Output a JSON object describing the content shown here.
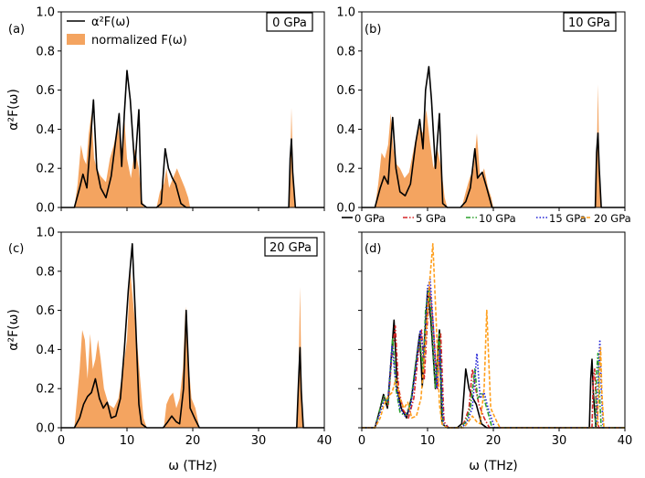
{
  "figure": {
    "xlabel": "ω (THz)",
    "ylabel": "α²F(ω)",
    "legend_line": "α²F(ω)",
    "legend_fill": "normalized F(ω)"
  },
  "colors": {
    "alpha": "#000000",
    "fill": "#f4a460",
    "s0": "#000000",
    "s5": "#d62728",
    "s10": "#2ca02c",
    "s15": "#1f1fd6",
    "s20": "#ff9f1c"
  },
  "chart_data": [
    {
      "type": "area",
      "panel": "(a)",
      "pressure_label": "0 GPa",
      "xlim": [
        0,
        40
      ],
      "ylim": [
        0,
        1.0
      ],
      "xticks": [
        "0",
        "10",
        "20",
        "30",
        "40"
      ],
      "yticks": [
        "0.0",
        "0.2",
        "0.4",
        "0.6",
        "0.8",
        "1.0"
      ],
      "series": [
        {
          "name": "α²F(ω)",
          "x": [
            0.0,
            2.0,
            2.8,
            3.3,
            3.9,
            4.4,
            4.9,
            5.4,
            6.0,
            6.8,
            7.6,
            8.3,
            8.8,
            9.2,
            9.6,
            10.0,
            10.5,
            11.2,
            11.8,
            12.2,
            13.0,
            14.5,
            15.2,
            15.8,
            16.3,
            16.9,
            17.4,
            18.2,
            19.0,
            34.6,
            34.8,
            35.0,
            35.2,
            35.6,
            40.0
          ],
          "y": [
            0.0,
            0.0,
            0.1,
            0.17,
            0.1,
            0.32,
            0.55,
            0.2,
            0.1,
            0.05,
            0.16,
            0.35,
            0.48,
            0.21,
            0.48,
            0.7,
            0.55,
            0.2,
            0.5,
            0.02,
            0.0,
            0.0,
            0.02,
            0.3,
            0.2,
            0.15,
            0.12,
            0.02,
            0.0,
            0.0,
            0.25,
            0.35,
            0.18,
            0.0,
            0.0
          ]
        },
        {
          "name": "normalized F(ω)",
          "x": [
            0.0,
            2.0,
            2.5,
            3.0,
            3.4,
            3.8,
            4.2,
            4.6,
            5.0,
            5.4,
            6.0,
            6.8,
            7.4,
            8.0,
            8.6,
            9.2,
            9.6,
            10.0,
            10.6,
            11.2,
            11.8,
            12.2,
            12.6,
            14.5,
            15.0,
            15.6,
            16.0,
            16.4,
            17.0,
            17.6,
            18.2,
            18.8,
            19.3,
            19.6,
            34.6,
            34.8,
            35.0,
            35.2,
            35.5,
            40.0
          ],
          "y": [
            0.0,
            0.0,
            0.12,
            0.32,
            0.25,
            0.22,
            0.38,
            0.48,
            0.25,
            0.2,
            0.16,
            0.13,
            0.25,
            0.32,
            0.42,
            0.3,
            0.46,
            0.25,
            0.15,
            0.3,
            0.2,
            0.05,
            0.0,
            0.0,
            0.08,
            0.12,
            0.2,
            0.1,
            0.15,
            0.2,
            0.15,
            0.1,
            0.05,
            0.0,
            0.0,
            0.2,
            0.51,
            0.25,
            0.0,
            0.0
          ]
        }
      ]
    },
    {
      "type": "area",
      "panel": "(b)",
      "pressure_label": "10 GPa",
      "xlim": [
        0,
        40
      ],
      "ylim": [
        0,
        1.0
      ],
      "xticks": [
        "0",
        "10",
        "20",
        "30",
        "40"
      ],
      "yticks": [
        "0.0",
        "0.2",
        "0.4",
        "0.6",
        "0.8",
        "1.0"
      ],
      "series": [
        {
          "name": "α²F(ω)",
          "x": [
            0.0,
            2.0,
            2.8,
            3.4,
            4.0,
            4.7,
            5.2,
            5.8,
            6.6,
            7.4,
            8.2,
            8.8,
            9.3,
            9.7,
            10.2,
            10.6,
            11.2,
            11.8,
            12.3,
            13.0,
            15.0,
            15.8,
            16.5,
            17.2,
            17.6,
            18.3,
            19.0,
            19.8,
            35.5,
            35.7,
            35.9,
            36.1,
            36.4,
            40.0
          ],
          "y": [
            0.0,
            0.0,
            0.1,
            0.16,
            0.12,
            0.46,
            0.2,
            0.08,
            0.06,
            0.12,
            0.33,
            0.45,
            0.3,
            0.6,
            0.72,
            0.55,
            0.2,
            0.48,
            0.02,
            0.0,
            0.0,
            0.03,
            0.1,
            0.3,
            0.15,
            0.18,
            0.1,
            0.0,
            0.0,
            0.28,
            0.38,
            0.2,
            0.0,
            0.0
          ]
        },
        {
          "name": "normalized F(ω)",
          "x": [
            0.0,
            2.0,
            2.5,
            3.0,
            3.5,
            4.0,
            4.4,
            4.8,
            5.3,
            5.8,
            6.5,
            7.2,
            7.9,
            8.6,
            9.3,
            9.8,
            10.3,
            10.9,
            11.5,
            12.1,
            12.6,
            13.0,
            15.2,
            15.8,
            16.4,
            17.0,
            17.5,
            18.0,
            18.6,
            19.2,
            19.7,
            20.0,
            35.5,
            35.7,
            35.9,
            36.1,
            36.4,
            40.0
          ],
          "y": [
            0.0,
            0.0,
            0.12,
            0.28,
            0.25,
            0.32,
            0.48,
            0.3,
            0.22,
            0.2,
            0.15,
            0.18,
            0.3,
            0.42,
            0.38,
            0.5,
            0.35,
            0.2,
            0.3,
            0.2,
            0.05,
            0.0,
            0.0,
            0.08,
            0.15,
            0.2,
            0.38,
            0.15,
            0.2,
            0.1,
            0.05,
            0.0,
            0.0,
            0.2,
            0.63,
            0.25,
            0.0,
            0.0
          ]
        }
      ]
    },
    {
      "type": "area",
      "panel": "(c)",
      "pressure_label": "20 GPa",
      "xlim": [
        0,
        40
      ],
      "ylim": [
        0,
        1.0
      ],
      "xticks": [
        "0",
        "10",
        "20",
        "30",
        "40"
      ],
      "yticks": [
        "0.0",
        "0.2",
        "0.4",
        "0.6",
        "0.8",
        "1.0"
      ],
      "series": [
        {
          "name": "α²F(ω)",
          "x": [
            0.0,
            2.0,
            2.8,
            3.4,
            4.0,
            4.6,
            5.2,
            5.8,
            6.4,
            7.0,
            7.6,
            8.3,
            9.0,
            9.6,
            10.2,
            10.8,
            11.3,
            11.8,
            12.2,
            13.0,
            15.5,
            16.2,
            16.8,
            17.5,
            18.0,
            18.6,
            19.0,
            19.6,
            20.4,
            21.0,
            35.8,
            36.1,
            36.3,
            36.5,
            36.8,
            40.0
          ],
          "y": [
            0.0,
            0.0,
            0.05,
            0.12,
            0.16,
            0.18,
            0.25,
            0.15,
            0.1,
            0.13,
            0.05,
            0.06,
            0.15,
            0.4,
            0.7,
            0.94,
            0.55,
            0.12,
            0.02,
            0.0,
            0.0,
            0.03,
            0.06,
            0.03,
            0.02,
            0.2,
            0.6,
            0.1,
            0.04,
            0.0,
            0.0,
            0.25,
            0.41,
            0.18,
            0.0,
            0.0
          ]
        },
        {
          "name": "normalized F(ω)",
          "x": [
            0.0,
            2.0,
            2.4,
            2.8,
            3.2,
            3.6,
            4.0,
            4.4,
            4.8,
            5.2,
            5.6,
            6.0,
            6.5,
            7.2,
            8.0,
            8.7,
            9.4,
            10.0,
            10.5,
            11.0,
            11.5,
            12.0,
            12.5,
            13.0,
            15.6,
            16.0,
            16.5,
            17.0,
            17.5,
            18.0,
            18.5,
            18.9,
            19.3,
            19.8,
            20.4,
            21.0,
            35.8,
            36.1,
            36.3,
            36.5,
            36.8,
            40.0
          ],
          "y": [
            0.0,
            0.0,
            0.15,
            0.3,
            0.5,
            0.45,
            0.25,
            0.48,
            0.3,
            0.35,
            0.45,
            0.35,
            0.2,
            0.12,
            0.1,
            0.15,
            0.3,
            0.45,
            0.8,
            0.62,
            0.45,
            0.25,
            0.05,
            0.0,
            0.0,
            0.12,
            0.16,
            0.18,
            0.1,
            0.15,
            0.3,
            0.62,
            0.35,
            0.15,
            0.1,
            0.0,
            0.0,
            0.3,
            0.72,
            0.3,
            0.0,
            0.0
          ]
        }
      ]
    },
    {
      "type": "line",
      "panel": "(d)",
      "xlim": [
        0,
        40
      ],
      "ylim": [
        0,
        1.0
      ],
      "xticks": [
        "0",
        "10",
        "20",
        "30",
        "40"
      ],
      "yticks": [],
      "legend": [
        "0 GPa",
        "5 GPa",
        "10 GPa",
        "15 GPa",
        "20 GPa"
      ],
      "series": [
        {
          "name": "0 GPa",
          "dash": "solid",
          "x": [
            0.0,
            2.0,
            2.8,
            3.3,
            3.9,
            4.4,
            4.9,
            5.4,
            6.0,
            6.8,
            7.6,
            8.3,
            8.8,
            9.2,
            9.6,
            10.0,
            10.5,
            11.2,
            11.8,
            12.2,
            13.0,
            14.5,
            15.2,
            15.8,
            16.3,
            16.9,
            17.4,
            18.2,
            19.0,
            34.6,
            34.8,
            35.0,
            35.2,
            35.6,
            40.0
          ],
          "y": [
            0.0,
            0.0,
            0.1,
            0.17,
            0.1,
            0.32,
            0.55,
            0.2,
            0.1,
            0.05,
            0.16,
            0.35,
            0.48,
            0.21,
            0.48,
            0.7,
            0.55,
            0.2,
            0.5,
            0.02,
            0.0,
            0.0,
            0.02,
            0.3,
            0.2,
            0.15,
            0.12,
            0.02,
            0.0,
            0.0,
            0.25,
            0.35,
            0.18,
            0.0,
            0.0
          ]
        },
        {
          "name": "5 GPa",
          "dash": "dashdot",
          "x": [
            0.0,
            2.0,
            2.8,
            3.4,
            4.0,
            4.6,
            5.1,
            5.6,
            6.3,
            7.1,
            7.9,
            8.6,
            9.1,
            9.5,
            9.9,
            10.3,
            10.8,
            11.5,
            12.0,
            12.5,
            13.2,
            15.0,
            15.6,
            16.3,
            16.8,
            17.3,
            17.8,
            18.6,
            19.4,
            35.0,
            35.2,
            35.4,
            35.6,
            36.0,
            40.0
          ],
          "y": [
            0.0,
            0.0,
            0.1,
            0.16,
            0.11,
            0.38,
            0.52,
            0.2,
            0.09,
            0.05,
            0.15,
            0.38,
            0.5,
            0.25,
            0.5,
            0.72,
            0.55,
            0.2,
            0.48,
            0.03,
            0.0,
            0.0,
            0.03,
            0.1,
            0.3,
            0.2,
            0.12,
            0.05,
            0.0,
            0.0,
            0.25,
            0.3,
            0.15,
            0.0,
            0.0
          ]
        },
        {
          "name": "10 GPa",
          "dash": "dashdot",
          "x": [
            0.0,
            2.0,
            2.8,
            3.4,
            4.0,
            4.7,
            5.2,
            5.8,
            6.6,
            7.4,
            8.2,
            8.8,
            9.3,
            9.7,
            10.2,
            10.6,
            11.2,
            11.8,
            12.3,
            13.0,
            15.0,
            15.8,
            16.5,
            17.2,
            17.6,
            18.3,
            19.0,
            19.8,
            35.5,
            35.7,
            35.9,
            36.1,
            36.4,
            40.0
          ],
          "y": [
            0.0,
            0.0,
            0.1,
            0.16,
            0.12,
            0.46,
            0.2,
            0.08,
            0.06,
            0.12,
            0.33,
            0.45,
            0.3,
            0.6,
            0.72,
            0.55,
            0.2,
            0.48,
            0.02,
            0.0,
            0.0,
            0.03,
            0.1,
            0.3,
            0.15,
            0.18,
            0.1,
            0.0,
            0.0,
            0.28,
            0.38,
            0.2,
            0.0,
            0.0
          ]
        },
        {
          "name": "15 GPa",
          "dash": "dotted",
          "x": [
            0.0,
            2.0,
            2.8,
            3.4,
            4.0,
            4.6,
            5.2,
            5.8,
            6.6,
            7.4,
            8.2,
            8.9,
            9.5,
            10.0,
            10.4,
            10.9,
            11.4,
            11.9,
            12.4,
            13.2,
            15.2,
            16.0,
            16.8,
            17.5,
            18.0,
            18.6,
            19.2,
            20.2,
            35.7,
            36.0,
            36.2,
            36.4,
            36.7,
            40.0
          ],
          "y": [
            0.0,
            0.0,
            0.08,
            0.14,
            0.14,
            0.42,
            0.22,
            0.1,
            0.06,
            0.1,
            0.3,
            0.5,
            0.35,
            0.72,
            0.76,
            0.5,
            0.2,
            0.4,
            0.02,
            0.0,
            0.0,
            0.03,
            0.1,
            0.38,
            0.15,
            0.18,
            0.1,
            0.0,
            0.0,
            0.3,
            0.45,
            0.2,
            0.0,
            0.0
          ]
        },
        {
          "name": "20 GPa",
          "dash": "dashed",
          "x": [
            0.0,
            2.0,
            2.8,
            3.4,
            4.0,
            4.6,
            5.2,
            5.8,
            6.4,
            7.0,
            7.6,
            8.3,
            9.0,
            9.6,
            10.2,
            10.8,
            11.3,
            11.8,
            12.2,
            13.0,
            15.5,
            16.2,
            16.8,
            17.5,
            18.0,
            18.6,
            19.0,
            19.6,
            20.4,
            21.0,
            35.8,
            36.1,
            36.3,
            36.5,
            36.8,
            40.0
          ],
          "y": [
            0.0,
            0.0,
            0.05,
            0.12,
            0.16,
            0.18,
            0.25,
            0.15,
            0.1,
            0.13,
            0.05,
            0.06,
            0.15,
            0.4,
            0.7,
            0.94,
            0.55,
            0.12,
            0.02,
            0.0,
            0.0,
            0.03,
            0.06,
            0.03,
            0.02,
            0.2,
            0.6,
            0.1,
            0.04,
            0.0,
            0.0,
            0.25,
            0.41,
            0.18,
            0.0,
            0.0
          ]
        }
      ]
    }
  ]
}
